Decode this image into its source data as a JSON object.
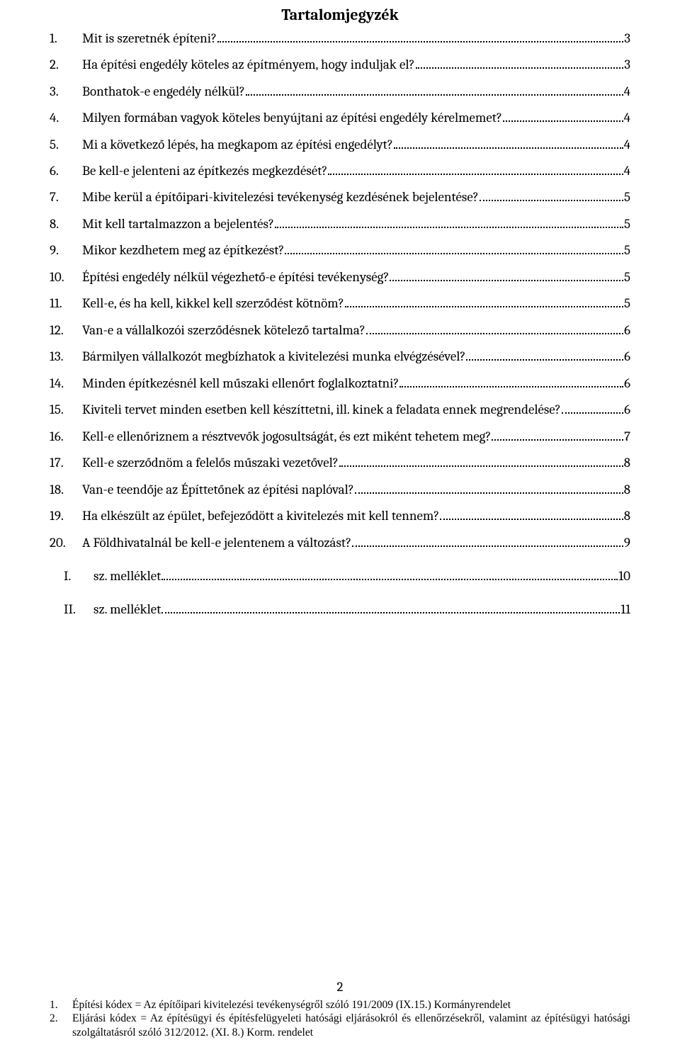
{
  "title": "Tartalomjegyzék",
  "pageNumber": "2",
  "toc": {
    "items": [
      {
        "num": "1.",
        "text": "Mit is szeretnék építeni?",
        "page": "3"
      },
      {
        "num": "2.",
        "text": "Ha építési engedély köteles az építményem, hogy induljak el?",
        "page": "3"
      },
      {
        "num": "3.",
        "text": "Bonthatok-e engedély nélkül?",
        "page": "4"
      },
      {
        "num": "4.",
        "text": "Milyen formában vagyok köteles benyújtani az építési engedély kérelmemet?",
        "page": "4"
      },
      {
        "num": "5.",
        "text": "Mi a következő lépés, ha megkapom az építési engedélyt?",
        "page": "4"
      },
      {
        "num": "6.",
        "text": "Be kell-e jelenteni az építkezés megkezdését?",
        "page": "4"
      },
      {
        "num": "7.",
        "text": "Mibe kerül a építőipari-kivitelezési tevékenység kezdésének bejelentése?",
        "page": "5"
      },
      {
        "num": "8.",
        "text": "Mit kell tartalmazzon a bejelentés?",
        "page": "5"
      },
      {
        "num": "9.",
        "text": "Mikor kezdhetem meg az építkezést?",
        "page": "5"
      },
      {
        "num": "10.",
        "text": "Építési engedély nélkül végezhető-e építési tevékenység?",
        "page": "5"
      },
      {
        "num": "11.",
        "text": "Kell-e, és ha kell, kikkel kell szerződést kötnöm?",
        "page": "5"
      },
      {
        "num": "12.",
        "text": "Van-e a vállalkozói szerződésnek kötelező tartalma?",
        "page": "6"
      },
      {
        "num": "13.",
        "text": "Bármilyen vállalkozót megbízhatok a kivitelezési munka elvégzésével?",
        "page": "6"
      },
      {
        "num": "14.",
        "text": "Minden építkezésnél kell műszaki ellenőrt foglalkoztatni?",
        "page": "6"
      },
      {
        "num": "15.",
        "text": "Kiviteli tervet minden esetben kell készíttetni, ill. kinek a feladata ennek megrendelése?",
        "page": "6"
      },
      {
        "num": "16.",
        "text": "Kell-e ellenőriznem a résztvevők jogosultságát, és ezt miként tehetem meg?",
        "page": "7"
      },
      {
        "num": "17.",
        "text": "Kell-e szerződnöm a felelős műszaki vezetővel?",
        "page": "8"
      },
      {
        "num": "18.",
        "text": "Van-e teendője az Építtetőnek az építési naplóval?",
        "page": "8"
      },
      {
        "num": "19.",
        "text": "Ha elkészült az épület, befejeződött a kivitelezés mit kell tennem?",
        "page": "8"
      },
      {
        "num": "20.",
        "text": "A Földhivatalnál be kell-e jelentenem a változást?",
        "page": "9"
      }
    ],
    "appendix": [
      {
        "num": "I.",
        "text": "sz. melléklet",
        "page": "10"
      },
      {
        "num": "II.",
        "text": "sz. melléklet",
        "page": "11"
      }
    ]
  },
  "footnotes": [
    {
      "num": "1.",
      "text": "Építési kódex =  Az építőipari kivitelezési tevékenységről szóló 191/2009 (IX.15.) Kormányrendelet"
    },
    {
      "num": "2.",
      "text": "Eljárási kódex = Az építésügyi és építésfelügyeleti hatósági eljárásokról és ellenőrzésekről, valamint az építésügyi hatósági szolgáltatásról szóló 312/2012. (XI. 8.) Korm. rendelet"
    }
  ]
}
